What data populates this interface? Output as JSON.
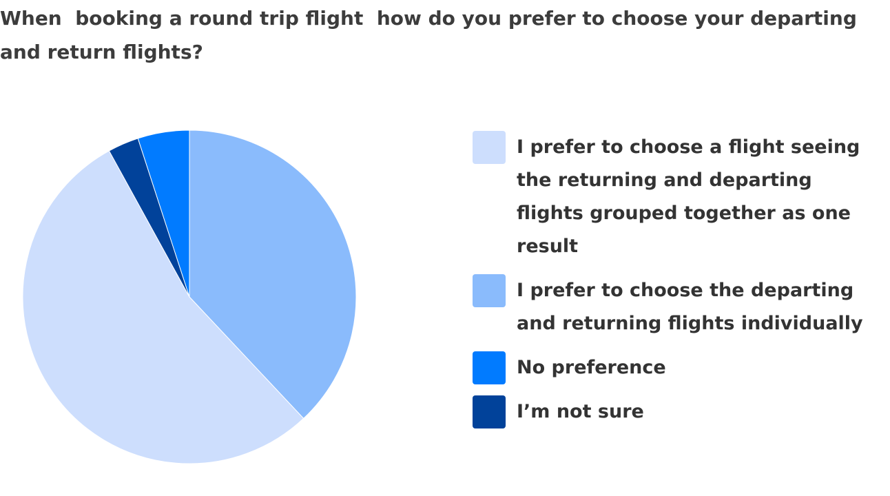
{
  "chart_data": {
    "type": "pie",
    "title": "When  booking a round trip flight  how do you prefer to choose your departing and return flights?",
    "start_angle_deg": 0,
    "direction": "clockwise",
    "slices": [
      {
        "label": "I prefer to choose the departing and returning flights individually",
        "value": 38,
        "color": "#8abbfc"
      },
      {
        "label": "I prefer to choose a flight seeing the returning and departing flights grouped together as one result",
        "value": 54,
        "color": "#cddefd"
      },
      {
        "label": "I’m not sure",
        "value": 3,
        "color": "#01429a"
      },
      {
        "label": "No preference",
        "value": 5,
        "color": "#017bff"
      }
    ],
    "legend": {
      "position": "right",
      "items": [
        {
          "label": "I prefer to choose a flight seeing the returning and departing flights grouped together as one result",
          "color": "#cddefd"
        },
        {
          "label": "I prefer to choose the departing and returning flights individually",
          "color": "#8abbfc"
        },
        {
          "label": "No preference",
          "color": "#017bff"
        },
        {
          "label": "I’m not sure",
          "color": "#01429a"
        }
      ]
    }
  }
}
